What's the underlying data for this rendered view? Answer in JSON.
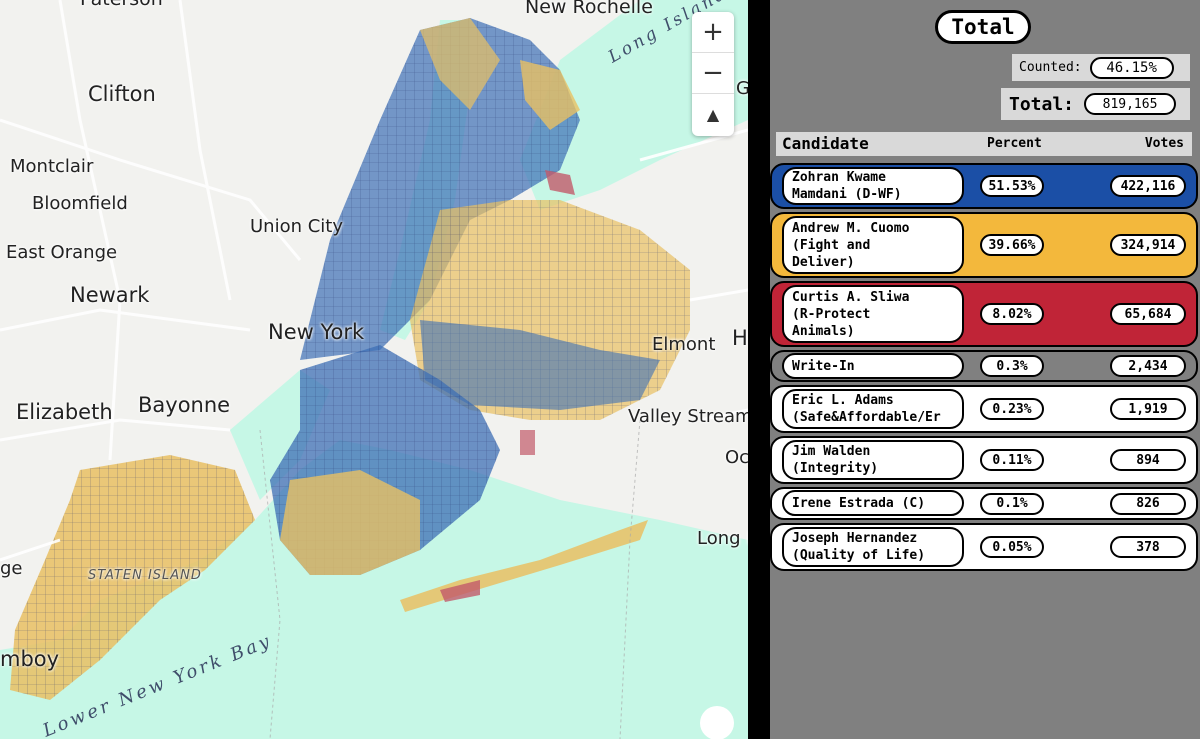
{
  "map": {
    "places": [
      "Paterson",
      "New Rochelle",
      "Clifton",
      "Montclair",
      "Bloomfield",
      "Union City",
      "East Orange",
      "Newark",
      "New York",
      "Elmont",
      "Elizabeth",
      "Bayonne",
      "Valley Stream",
      "STATEN ISLAND",
      "Long I",
      "Oc",
      "ge",
      "mboy",
      "H",
      "G"
    ],
    "water_labels": [
      "Long Island Sound",
      "Lower New York Bay"
    ],
    "colors": {
      "water": "#c6f7e6",
      "land": "#f2f2ef",
      "blue": "#3d6fb6",
      "gold": "#e9c063",
      "red": "#c25a6a",
      "road": "#ffffff"
    },
    "controls": {
      "zoom_in": "+",
      "zoom_out": "−",
      "compass": "▲"
    }
  },
  "panel": {
    "title": "Total",
    "counted_label": "Counted:",
    "counted_value": "46.15%",
    "total_label": "Total:",
    "total_value": "819,165",
    "headers": {
      "candidate": "Candidate",
      "percent": "Percent",
      "votes": "Votes"
    },
    "candidates": [
      {
        "name": "Zohran Kwame\nMamdani (D-WF)",
        "percent": "51.53%",
        "votes": "422,116",
        "color": "#1b4fa6",
        "share": 0.5153
      },
      {
        "name": "Andrew M. Cuomo\n(Fight and\nDeliver)",
        "percent": "39.66%",
        "votes": "324,914",
        "color": "#f3b83c",
        "share": 0.3966
      },
      {
        "name": "Curtis A. Sliwa\n(R-Protect\nAnimals)",
        "percent": "8.02%",
        "votes": "65,684",
        "color": "#c02437",
        "share": 0.0802
      },
      {
        "name": "Write-In",
        "percent": "0.3%",
        "votes": "2,434",
        "color": "#808080",
        "share": 0.003
      },
      {
        "name": "Eric L. Adams\n(Safe&Affordable/Er",
        "percent": "0.23%",
        "votes": "1,919",
        "color": "#ffffff",
        "share": 0.0023
      },
      {
        "name": "Jim Walden\n(Integrity)",
        "percent": "0.11%",
        "votes": "894",
        "color": "#ffffff",
        "share": 0.0011
      },
      {
        "name": "Irene Estrada (C)",
        "percent": "0.1%",
        "votes": "826",
        "color": "#ffffff",
        "share": 0.001
      },
      {
        "name": "Joseph Hernandez\n(Quality of Life)",
        "percent": "0.05%",
        "votes": "378",
        "color": "#ffffff",
        "share": 0.0005
      }
    ]
  }
}
